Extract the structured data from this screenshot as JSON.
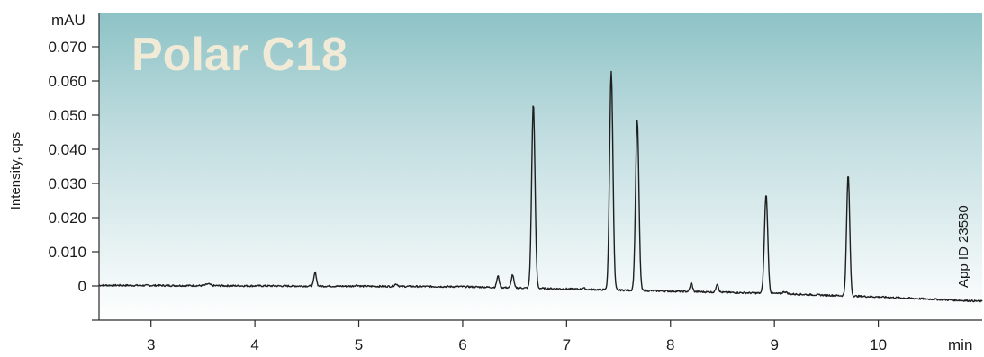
{
  "chart_data": {
    "type": "line",
    "title": "",
    "panel_label": "Polar C18",
    "annotation": "App ID 23580",
    "ylabel": "Intensity, cps",
    "y_unit": "mAU",
    "x_unit": "min",
    "xlim": [
      2.5,
      11.0
    ],
    "ylim": [
      -0.01,
      0.08
    ],
    "x_ticks": [
      3,
      4,
      5,
      6,
      7,
      8,
      9,
      10
    ],
    "y_ticks": [
      0,
      0.01,
      0.02,
      0.03,
      0.04,
      0.05,
      0.06,
      0.07
    ],
    "y_tick_labels": [
      "0",
      "0.010",
      "0.020",
      "0.030",
      "0.040",
      "0.050",
      "0.060",
      "0.070"
    ],
    "baseline": {
      "points": [
        [
          2.5,
          0.0002
        ],
        [
          6.0,
          -0.0002
        ],
        [
          7.5,
          -0.0012
        ],
        [
          9.0,
          -0.0022
        ],
        [
          10.0,
          -0.0032
        ],
        [
          11.0,
          -0.0045
        ]
      ]
    },
    "peaks": [
      {
        "rt": 3.55,
        "height": 0.0005,
        "width": 0.02
      },
      {
        "rt": 4.58,
        "height": 0.004,
        "width": 0.012
      },
      {
        "rt": 4.98,
        "height": 0.0003,
        "width": 0.02
      },
      {
        "rt": 5.36,
        "height": 0.0007,
        "width": 0.015
      },
      {
        "rt": 6.34,
        "height": 0.0033,
        "width": 0.012
      },
      {
        "rt": 6.48,
        "height": 0.0038,
        "width": 0.012
      },
      {
        "rt": 6.68,
        "height": 0.054,
        "width": 0.016
      },
      {
        "rt": 7.16,
        "height": 0.0004,
        "width": 0.012
      },
      {
        "rt": 7.43,
        "height": 0.064,
        "width": 0.016
      },
      {
        "rt": 7.68,
        "height": 0.05,
        "width": 0.016
      },
      {
        "rt": 8.2,
        "height": 0.0025,
        "width": 0.012
      },
      {
        "rt": 8.45,
        "height": 0.0025,
        "width": 0.012
      },
      {
        "rt": 8.92,
        "height": 0.029,
        "width": 0.016
      },
      {
        "rt": 9.1,
        "height": 0.0006,
        "width": 0.02
      },
      {
        "rt": 9.71,
        "height": 0.0355,
        "width": 0.015
      }
    ],
    "colors": {
      "background_top": "#8dc3c6",
      "background_bottom": "#ffffff",
      "trace": "#1f1f1f",
      "watermark": "#f1ead6"
    },
    "grid": false,
    "legend": "none"
  }
}
